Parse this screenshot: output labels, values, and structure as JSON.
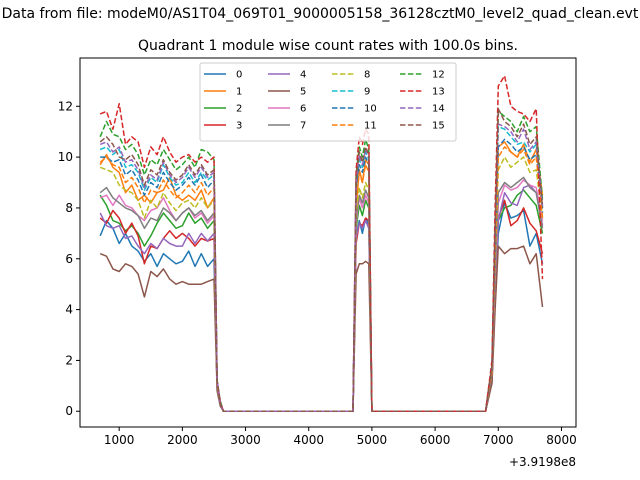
{
  "chart_data": {
    "type": "line",
    "suptitle": "Data from file: modeM0/AS1T04_069T01_9000005158_36128cztM0_level2_quad_clean.evt",
    "title": "Quadrant 1 module wise count rates with 100.0s bins.",
    "xlabel": "",
    "ylabel": "",
    "x_offset_label": "+3.9198e8",
    "xlim": [
      380,
      8230
    ],
    "ylim": [
      -0.62,
      13.9
    ],
    "xticks": [
      1000,
      2000,
      3000,
      4000,
      5000,
      6000,
      7000,
      8000
    ],
    "xtick_labels": [
      "1000",
      "2000",
      "3000",
      "4000",
      "5000",
      "6000",
      "7000",
      "8000"
    ],
    "yticks": [
      0,
      2,
      4,
      6,
      8,
      10,
      12
    ],
    "ytick_labels": [
      "0",
      "2",
      "4",
      "6",
      "8",
      "10",
      "12"
    ],
    "grid": false,
    "legend_position": "upper-center",
    "legend_columns": 4,
    "x": [
      700,
      800,
      900,
      1000,
      1100,
      1200,
      1300,
      1400,
      1500,
      1600,
      1700,
      1800,
      1900,
      2000,
      2100,
      2200,
      2300,
      2400,
      2500,
      2550,
      2600,
      2650,
      2700,
      3000,
      4000,
      4700,
      4750,
      4800,
      4850,
      4900,
      4950,
      5000,
      5050,
      5100,
      5200,
      6000,
      6800,
      6900,
      6950,
      7000,
      7100,
      7200,
      7300,
      7400,
      7500,
      7600,
      7700
    ],
    "series": [
      {
        "name": "0",
        "color": "#1f77b4",
        "dash": false,
        "values": [
          6.9,
          7.5,
          7.2,
          6.6,
          7.0,
          6.5,
          6.3,
          5.9,
          6.2,
          5.7,
          6.2,
          6.0,
          5.8,
          5.9,
          6.3,
          5.7,
          6.2,
          5.7,
          6.0,
          1.0,
          0.3,
          0.0,
          0.0,
          0.0,
          0.0,
          0.0,
          6.9,
          7.5,
          7.0,
          7.6,
          7.3,
          0.0,
          0.0,
          0.0,
          0.0,
          0.0,
          0.0,
          1.2,
          4.5,
          7.0,
          8.2,
          7.6,
          7.7,
          7.9,
          6.5,
          7.0,
          5.8
        ]
      },
      {
        "name": "1",
        "color": "#ff7f0e",
        "dash": false,
        "values": [
          9.7,
          10.1,
          9.6,
          9.4,
          8.6,
          8.9,
          8.3,
          8.5,
          8.2,
          8.6,
          8.7,
          9.2,
          8.5,
          8.3,
          8.5,
          8.3,
          8.7,
          8.0,
          8.4,
          1.1,
          0.3,
          0.0,
          0.0,
          0.0,
          0.0,
          0.0,
          8.0,
          9.5,
          9.0,
          9.9,
          9.7,
          0.0,
          0.0,
          0.0,
          0.0,
          0.0,
          0.0,
          1.8,
          6.8,
          10.4,
          10.6,
          10.2,
          10.0,
          10.5,
          9.8,
          10.3,
          8.5
        ]
      },
      {
        "name": "2",
        "color": "#2ca02c",
        "dash": false,
        "values": [
          8.5,
          8.1,
          7.5,
          7.4,
          7.1,
          7.3,
          7.0,
          6.5,
          6.9,
          7.4,
          7.8,
          7.5,
          7.2,
          7.3,
          7.8,
          7.4,
          7.6,
          7.2,
          7.5,
          0.9,
          0.3,
          0.0,
          0.0,
          0.0,
          0.0,
          0.0,
          7.2,
          8.1,
          7.7,
          8.3,
          8.0,
          0.0,
          0.0,
          0.0,
          0.0,
          0.0,
          0.0,
          1.5,
          5.0,
          7.5,
          8.0,
          8.1,
          8.5,
          8.7,
          8.4,
          8.1,
          7.0
        ]
      },
      {
        "name": "3",
        "color": "#d62728",
        "dash": false,
        "values": [
          7.6,
          7.4,
          7.9,
          7.6,
          7.0,
          7.4,
          6.9,
          5.8,
          6.5,
          6.4,
          6.8,
          7.1,
          6.8,
          7.0,
          6.8,
          6.5,
          6.8,
          6.7,
          6.8,
          0.9,
          0.3,
          0.0,
          0.0,
          0.0,
          0.0,
          0.0,
          6.6,
          7.4,
          7.3,
          7.6,
          7.5,
          0.0,
          0.0,
          0.0,
          0.0,
          0.0,
          0.0,
          1.3,
          5.0,
          7.6,
          8.3,
          7.3,
          7.5,
          8.0,
          7.4,
          7.1,
          6.2
        ]
      },
      {
        "name": "4",
        "color": "#9467bd",
        "dash": false,
        "values": [
          7.8,
          7.3,
          7.2,
          7.3,
          6.8,
          6.9,
          6.5,
          6.2,
          6.6,
          6.4,
          6.8,
          6.6,
          6.5,
          6.5,
          7.0,
          6.6,
          7.0,
          6.7,
          7.0,
          0.9,
          0.3,
          0.0,
          0.0,
          0.0,
          0.0,
          0.0,
          6.8,
          7.4,
          7.2,
          7.5,
          7.2,
          0.0,
          0.0,
          0.0,
          0.0,
          0.0,
          0.0,
          1.3,
          4.8,
          7.5,
          8.6,
          8.2,
          8.1,
          8.8,
          8.9,
          8.6,
          7.3
        ]
      },
      {
        "name": "5",
        "color": "#8c564b",
        "dash": false,
        "values": [
          6.2,
          6.1,
          5.6,
          5.5,
          5.8,
          5.7,
          5.4,
          4.5,
          5.5,
          5.3,
          5.6,
          5.2,
          5.0,
          5.1,
          5.0,
          5.0,
          5.0,
          5.1,
          5.2,
          0.8,
          0.2,
          0.0,
          0.0,
          0.0,
          0.0,
          0.0,
          5.4,
          5.8,
          5.8,
          5.9,
          5.8,
          0.0,
          0.0,
          0.0,
          0.0,
          0.0,
          0.0,
          1.1,
          4.0,
          6.5,
          6.2,
          6.4,
          6.4,
          6.5,
          5.8,
          6.2,
          4.1
        ]
      },
      {
        "name": "6",
        "color": "#e377c2",
        "dash": false,
        "values": [
          8.4,
          8.5,
          8.1,
          8.5,
          8.1,
          8.0,
          7.7,
          7.5,
          7.9,
          8.0,
          8.4,
          7.9,
          7.5,
          7.8,
          8.0,
          7.6,
          7.8,
          7.4,
          7.7,
          1.0,
          0.3,
          0.0,
          0.0,
          0.0,
          0.0,
          0.0,
          7.4,
          8.4,
          8.0,
          8.5,
          8.2,
          0.0,
          0.0,
          0.0,
          0.0,
          0.0,
          0.0,
          1.5,
          5.2,
          8.2,
          8.9,
          8.7,
          8.8,
          9.1,
          8.9,
          8.8,
          7.5
        ]
      },
      {
        "name": "7",
        "color": "#7f7f7f",
        "dash": false,
        "values": [
          8.6,
          8.8,
          8.4,
          8.2,
          8.0,
          7.9,
          7.7,
          7.2,
          7.6,
          7.5,
          8.0,
          7.8,
          7.5,
          7.8,
          8.0,
          7.7,
          7.9,
          7.5,
          7.8,
          1.0,
          0.3,
          0.0,
          0.0,
          0.0,
          0.0,
          0.0,
          7.6,
          8.5,
          8.2,
          8.7,
          8.4,
          0.0,
          0.0,
          0.0,
          0.0,
          0.0,
          0.0,
          1.5,
          5.5,
          8.6,
          9.0,
          8.8,
          9.0,
          9.2,
          8.8,
          8.6,
          7.2
        ]
      },
      {
        "name": "8",
        "color": "#bcbd22",
        "dash": true,
        "values": [
          9.6,
          9.5,
          9.4,
          8.9,
          8.7,
          8.6,
          8.3,
          7.6,
          8.3,
          8.0,
          8.6,
          8.2,
          7.9,
          8.2,
          8.3,
          8.0,
          8.4,
          8.0,
          8.3,
          1.1,
          0.3,
          0.0,
          0.0,
          0.0,
          0.0,
          0.0,
          7.8,
          8.8,
          8.4,
          9.0,
          8.7,
          0.0,
          0.0,
          0.0,
          0.0,
          0.0,
          0.0,
          1.6,
          6.0,
          9.5,
          10.0,
          9.6,
          9.8,
          10.0,
          9.4,
          9.5,
          7.6
        ]
      },
      {
        "name": "9",
        "color": "#17becf",
        "dash": true,
        "values": [
          10.3,
          10.4,
          10.1,
          10.3,
          9.6,
          9.7,
          9.4,
          8.7,
          9.2,
          9.0,
          9.7,
          9.2,
          8.9,
          9.0,
          9.4,
          9.0,
          9.4,
          9.1,
          9.3,
          1.2,
          0.3,
          0.0,
          0.0,
          0.0,
          0.0,
          0.0,
          8.8,
          9.9,
          9.6,
          10.2,
          9.9,
          0.0,
          0.0,
          0.0,
          0.0,
          0.0,
          0.0,
          1.7,
          6.8,
          11.2,
          11.1,
          10.8,
          10.5,
          10.6,
          10.2,
          10.5,
          8.0
        ]
      },
      {
        "name": "10",
        "color": "#1f77b4",
        "dash": true,
        "values": [
          10.0,
          10.0,
          9.8,
          9.9,
          9.3,
          9.5,
          9.1,
          8.5,
          9.0,
          8.8,
          9.4,
          9.0,
          8.7,
          8.9,
          9.2,
          8.9,
          9.3,
          8.8,
          9.1,
          1.1,
          0.3,
          0.0,
          0.0,
          0.0,
          0.0,
          0.0,
          8.6,
          9.7,
          9.4,
          10.0,
          9.7,
          0.0,
          0.0,
          0.0,
          0.0,
          0.0,
          0.0,
          1.7,
          6.5,
          10.4,
          10.7,
          10.5,
          10.2,
          10.4,
          9.9,
          10.1,
          7.8
        ]
      },
      {
        "name": "11",
        "color": "#ff7f0e",
        "dash": true,
        "values": [
          9.8,
          10.0,
          9.7,
          9.6,
          9.0,
          9.2,
          8.8,
          8.2,
          8.7,
          8.6,
          9.1,
          8.7,
          8.4,
          8.6,
          8.9,
          8.6,
          9.0,
          8.5,
          8.8,
          1.1,
          0.3,
          0.0,
          0.0,
          0.0,
          0.0,
          0.0,
          8.3,
          9.4,
          9.0,
          9.7,
          9.4,
          0.0,
          0.0,
          0.0,
          0.0,
          0.0,
          0.0,
          1.6,
          6.3,
          10.0,
          10.4,
          10.2,
          10.0,
          10.3,
          9.7,
          10.0,
          7.6
        ]
      },
      {
        "name": "12",
        "color": "#2ca02c",
        "dash": true,
        "values": [
          10.8,
          11.4,
          10.9,
          10.8,
          10.3,
          10.5,
          10.1,
          9.3,
          9.9,
          9.7,
          10.3,
          9.9,
          9.5,
          9.7,
          10.0,
          9.6,
          10.3,
          10.2,
          9.9,
          1.2,
          0.4,
          0.0,
          0.0,
          0.0,
          0.0,
          0.0,
          9.3,
          10.4,
          10.0,
          10.7,
          10.3,
          0.0,
          0.0,
          0.0,
          0.0,
          0.0,
          0.0,
          1.8,
          7.2,
          11.8,
          11.6,
          11.4,
          11.0,
          11.6,
          11.0,
          11.2,
          8.3
        ]
      },
      {
        "name": "13",
        "color": "#d62728",
        "dash": true,
        "values": [
          11.7,
          11.8,
          11.1,
          12.1,
          10.5,
          10.8,
          10.6,
          9.6,
          10.4,
          10.1,
          10.8,
          10.2,
          9.8,
          10.0,
          10.1,
          9.8,
          10.0,
          9.8,
          10.0,
          1.2,
          0.4,
          0.0,
          0.0,
          0.0,
          0.0,
          0.0,
          9.5,
          10.8,
          10.5,
          11.1,
          10.9,
          0.0,
          0.0,
          0.0,
          0.0,
          0.0,
          0.0,
          2.0,
          8.0,
          12.8,
          13.2,
          12.0,
          11.8,
          11.7,
          11.4,
          11.9,
          5.2
        ]
      },
      {
        "name": "14",
        "color": "#9467bd",
        "dash": true,
        "values": [
          10.5,
          10.6,
          10.2,
          10.4,
          9.8,
          9.9,
          9.5,
          8.8,
          9.3,
          9.1,
          9.8,
          9.3,
          9.0,
          9.2,
          9.6,
          9.2,
          9.6,
          9.2,
          9.4,
          1.2,
          0.3,
          0.0,
          0.0,
          0.0,
          0.0,
          0.0,
          9.0,
          10.1,
          9.7,
          10.3,
          10.0,
          0.0,
          0.0,
          0.0,
          0.0,
          0.0,
          0.0,
          1.8,
          7.0,
          11.3,
          11.2,
          11.0,
          10.6,
          11.1,
          10.3,
          10.6,
          8.1
        ]
      },
      {
        "name": "15",
        "color": "#8c564b",
        "dash": true,
        "values": [
          10.6,
          10.8,
          10.5,
          10.0,
          9.9,
          10.1,
          9.7,
          8.9,
          9.5,
          9.3,
          9.9,
          9.4,
          9.1,
          9.3,
          9.7,
          9.3,
          9.7,
          9.3,
          9.5,
          1.2,
          0.3,
          0.0,
          0.0,
          0.0,
          0.0,
          0.0,
          9.1,
          10.2,
          9.8,
          10.4,
          10.1,
          0.0,
          0.0,
          0.0,
          0.0,
          0.0,
          0.0,
          1.8,
          7.1,
          11.9,
          11.4,
          11.2,
          10.8,
          11.3,
          10.5,
          10.8,
          8.0
        ]
      }
    ]
  }
}
